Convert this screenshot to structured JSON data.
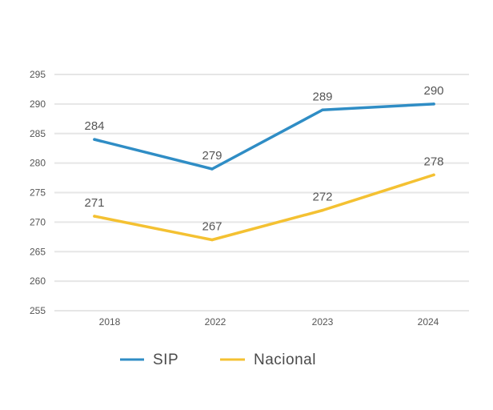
{
  "chart_data": {
    "type": "line",
    "title": "",
    "xlabel": "",
    "ylabel": "",
    "categories": [
      "2018",
      "2022",
      "2023",
      "2024"
    ],
    "ylim": [
      255,
      295
    ],
    "yticks": [
      255,
      260,
      265,
      270,
      275,
      280,
      285,
      290,
      295
    ],
    "grid": true,
    "legend_position": "bottom-left",
    "series": [
      {
        "name": "SIP",
        "values": [
          284,
          279,
          289,
          290
        ],
        "labels": [
          "284",
          "279",
          "289",
          "290"
        ],
        "color": "#2f8dc5"
      },
      {
        "name": "Nacional",
        "values": [
          271,
          267,
          272,
          278
        ],
        "labels": [
          "271",
          "267",
          "272",
          "278"
        ],
        "color": "#f4c132"
      }
    ]
  }
}
